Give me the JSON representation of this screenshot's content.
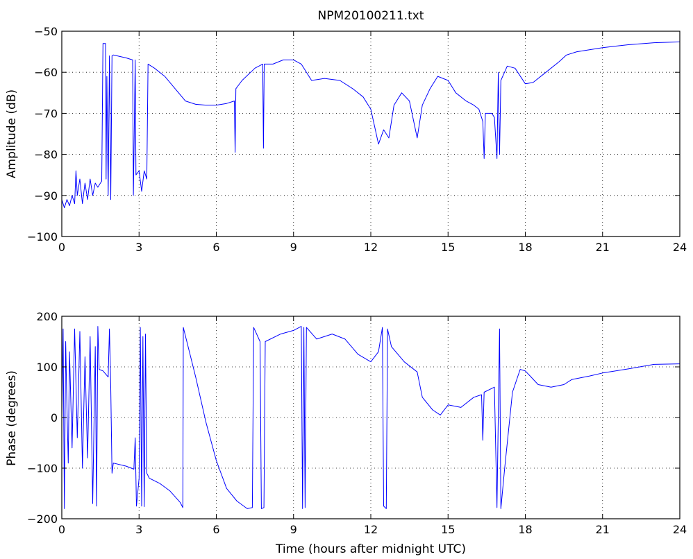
{
  "chart_data": [
    {
      "type": "line",
      "title": "NPM20100211.txt",
      "xlabel": "",
      "ylabel": "Amplitude (dB)",
      "xlim": [
        0,
        24
      ],
      "ylim": [
        -100,
        -50
      ],
      "xticks": [
        "0",
        "3",
        "6",
        "9",
        "12",
        "15",
        "18",
        "21",
        "24"
      ],
      "yticks": [
        "-100",
        "-90",
        "-80",
        "-70",
        "-60",
        "-50"
      ],
      "grid": true,
      "series": [
        {
          "color": "#0000ff",
          "points": [
            [
              0.0,
              -91
            ],
            [
              0.1,
              -93
            ],
            [
              0.2,
              -91
            ],
            [
              0.3,
              -92.5
            ],
            [
              0.4,
              -90
            ],
            [
              0.5,
              -92
            ],
            [
              0.55,
              -84
            ],
            [
              0.6,
              -90
            ],
            [
              0.7,
              -86
            ],
            [
              0.8,
              -92
            ],
            [
              0.9,
              -87
            ],
            [
              1.0,
              -91
            ],
            [
              1.1,
              -86
            ],
            [
              1.2,
              -90
            ],
            [
              1.3,
              -87
            ],
            [
              1.4,
              -88
            ],
            [
              1.5,
              -87
            ],
            [
              1.55,
              -86.5
            ],
            [
              1.6,
              -53
            ],
            [
              1.7,
              -53
            ],
            [
              1.72,
              -86
            ],
            [
              1.75,
              -61
            ],
            [
              1.8,
              -90
            ],
            [
              1.85,
              -56
            ],
            [
              1.9,
              -91
            ],
            [
              1.95,
              -56
            ],
            [
              2.0,
              -55.8
            ],
            [
              2.5,
              -56.5
            ],
            [
              2.75,
              -57
            ],
            [
              2.78,
              -90
            ],
            [
              2.85,
              -57
            ],
            [
              2.88,
              -85
            ],
            [
              3.0,
              -84
            ],
            [
              3.1,
              -89
            ],
            [
              3.2,
              -84
            ],
            [
              3.3,
              -86
            ],
            [
              3.35,
              -58
            ],
            [
              3.6,
              -59
            ],
            [
              4.0,
              -61
            ],
            [
              4.4,
              -64
            ],
            [
              4.8,
              -67
            ],
            [
              5.2,
              -67.8
            ],
            [
              5.6,
              -68
            ],
            [
              6.0,
              -68
            ],
            [
              6.4,
              -67.6
            ],
            [
              6.7,
              -67
            ],
            [
              6.73,
              -79.5
            ],
            [
              6.76,
              -64
            ],
            [
              7.0,
              -62
            ],
            [
              7.5,
              -59
            ],
            [
              7.8,
              -58
            ],
            [
              7.83,
              -78.5
            ],
            [
              7.86,
              -58
            ],
            [
              8.2,
              -58
            ],
            [
              8.6,
              -57
            ],
            [
              9.0,
              -57
            ],
            [
              9.3,
              -58
            ],
            [
              9.7,
              -62
            ],
            [
              10.2,
              -61.5
            ],
            [
              10.8,
              -62
            ],
            [
              11.3,
              -64
            ],
            [
              11.7,
              -66
            ],
            [
              12.0,
              -69
            ],
            [
              12.3,
              -77.5
            ],
            [
              12.5,
              -74
            ],
            [
              12.7,
              -76
            ],
            [
              12.9,
              -68
            ],
            [
              13.2,
              -65
            ],
            [
              13.5,
              -67
            ],
            [
              13.8,
              -76
            ],
            [
              14.0,
              -68
            ],
            [
              14.3,
              -64
            ],
            [
              14.6,
              -61
            ],
            [
              15.0,
              -62
            ],
            [
              15.3,
              -65
            ],
            [
              15.7,
              -67
            ],
            [
              16.0,
              -68
            ],
            [
              16.2,
              -69
            ],
            [
              16.35,
              -72
            ],
            [
              16.4,
              -81
            ],
            [
              16.45,
              -70
            ],
            [
              16.7,
              -70
            ],
            [
              16.8,
              -71
            ],
            [
              16.9,
              -81
            ],
            [
              16.95,
              -60
            ],
            [
              17.0,
              -80
            ],
            [
              17.05,
              -62
            ],
            [
              17.3,
              -58.5
            ],
            [
              17.6,
              -59
            ],
            [
              18.0,
              -62.8
            ],
            [
              18.3,
              -62.5
            ],
            [
              18.8,
              -60
            ],
            [
              19.3,
              -57.5
            ],
            [
              19.6,
              -55.8
            ],
            [
              20.0,
              -55
            ],
            [
              21.0,
              -54
            ],
            [
              22.0,
              -53.3
            ],
            [
              23.0,
              -52.8
            ],
            [
              24.0,
              -52.6
            ]
          ]
        }
      ]
    },
    {
      "type": "line",
      "title": "",
      "xlabel": "Time (hours after midnight UTC)",
      "ylabel": "Phase (degrees)",
      "xlim": [
        0,
        24
      ],
      "ylim": [
        -200,
        200
      ],
      "xticks": [
        "0",
        "3",
        "6",
        "9",
        "12",
        "15",
        "18",
        "21",
        "24"
      ],
      "yticks": [
        "-200",
        "-100",
        "0",
        "100",
        "200"
      ],
      "grid": true,
      "series": [
        {
          "color": "#0000ff",
          "points": [
            [
              0.0,
              0
            ],
            [
              0.05,
              175
            ],
            [
              0.1,
              -180
            ],
            [
              0.15,
              150
            ],
            [
              0.2,
              20
            ],
            [
              0.25,
              -90
            ],
            [
              0.3,
              130
            ],
            [
              0.4,
              -60
            ],
            [
              0.5,
              175
            ],
            [
              0.6,
              -40
            ],
            [
              0.7,
              170
            ],
            [
              0.8,
              -100
            ],
            [
              0.9,
              120
            ],
            [
              1.0,
              -80
            ],
            [
              1.1,
              160
            ],
            [
              1.2,
              -170
            ],
            [
              1.3,
              140
            ],
            [
              1.35,
              -175
            ],
            [
              1.4,
              180
            ],
            [
              1.45,
              95
            ],
            [
              1.6,
              92
            ],
            [
              1.8,
              80
            ],
            [
              1.85,
              175
            ],
            [
              1.9,
              60
            ],
            [
              1.95,
              -110
            ],
            [
              2.0,
              -90
            ],
            [
              2.5,
              -96
            ],
            [
              2.8,
              -102
            ],
            [
              2.85,
              -40
            ],
            [
              2.9,
              -175
            ],
            [
              3.0,
              -120
            ],
            [
              3.05,
              178
            ],
            [
              3.1,
              -175
            ],
            [
              3.15,
              160
            ],
            [
              3.2,
              -176
            ],
            [
              3.25,
              165
            ],
            [
              3.3,
              -110
            ],
            [
              3.4,
              -120
            ],
            [
              3.8,
              -130
            ],
            [
              4.2,
              -145
            ],
            [
              4.6,
              -168
            ],
            [
              4.7,
              -178
            ],
            [
              4.72,
              178
            ],
            [
              5.2,
              80
            ],
            [
              5.6,
              -10
            ],
            [
              6.0,
              -85
            ],
            [
              6.4,
              -140
            ],
            [
              6.8,
              -165
            ],
            [
              7.2,
              -180
            ],
            [
              7.4,
              -178
            ],
            [
              7.45,
              178
            ],
            [
              7.7,
              150
            ],
            [
              7.75,
              -180
            ],
            [
              7.85,
              -178
            ],
            [
              7.9,
              150
            ],
            [
              8.5,
              165
            ],
            [
              9.0,
              172
            ],
            [
              9.3,
              180
            ],
            [
              9.35,
              -180
            ],
            [
              9.4,
              178
            ],
            [
              9.45,
              -178
            ],
            [
              9.5,
              178
            ],
            [
              9.9,
              155
            ],
            [
              10.5,
              165
            ],
            [
              11.0,
              155
            ],
            [
              11.5,
              125
            ],
            [
              12.0,
              110
            ],
            [
              12.3,
              130
            ],
            [
              12.45,
              178
            ],
            [
              12.5,
              -175
            ],
            [
              12.6,
              -180
            ],
            [
              12.65,
              175
            ],
            [
              12.8,
              140
            ],
            [
              13.3,
              110
            ],
            [
              13.8,
              90
            ],
            [
              14.0,
              40
            ],
            [
              14.4,
              15
            ],
            [
              14.7,
              5
            ],
            [
              15.0,
              25
            ],
            [
              15.5,
              20
            ],
            [
              16.0,
              40
            ],
            [
              16.3,
              45
            ],
            [
              16.35,
              -45
            ],
            [
              16.4,
              50
            ],
            [
              16.8,
              60
            ],
            [
              16.9,
              -178
            ],
            [
              17.0,
              175
            ],
            [
              17.05,
              -180
            ],
            [
              17.2,
              -100
            ],
            [
              17.5,
              50
            ],
            [
              17.8,
              95
            ],
            [
              18.0,
              92
            ],
            [
              18.5,
              65
            ],
            [
              19.0,
              60
            ],
            [
              19.5,
              65
            ],
            [
              19.8,
              75
            ],
            [
              20.5,
              82
            ],
            [
              21.0,
              88
            ],
            [
              22.0,
              96
            ],
            [
              23.0,
              105
            ],
            [
              24.0,
              106
            ]
          ]
        }
      ]
    }
  ]
}
